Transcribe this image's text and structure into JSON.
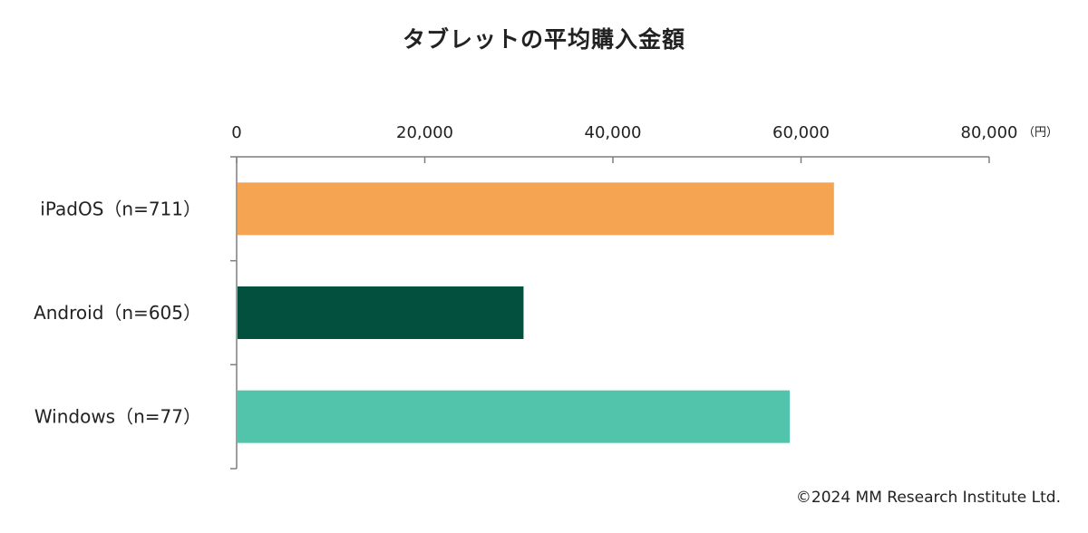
{
  "chart_data": {
    "type": "bar",
    "orientation": "horizontal",
    "title": "タブレットの平均購入金額",
    "categories": [
      "iPadOS（n=711）",
      "Android（n=605）",
      "Windows（n=77）"
    ],
    "values": [
      63500,
      30500,
      58800
    ],
    "colors": [
      "#F5A452",
      "#03503F",
      "#52C4AB"
    ],
    "xlim": [
      0,
      80000
    ],
    "xticks": [
      0,
      20000,
      40000,
      60000,
      80000
    ],
    "xtick_labels": [
      "0",
      "20,000",
      "40,000",
      "60,000",
      "80,000"
    ],
    "x_unit": "（円）",
    "xlabel": "",
    "ylabel": "",
    "x_axis_position": "top",
    "grid": false,
    "legend": "none"
  },
  "footer": {
    "copyright": "©2024  MM Research Institute Ltd."
  }
}
